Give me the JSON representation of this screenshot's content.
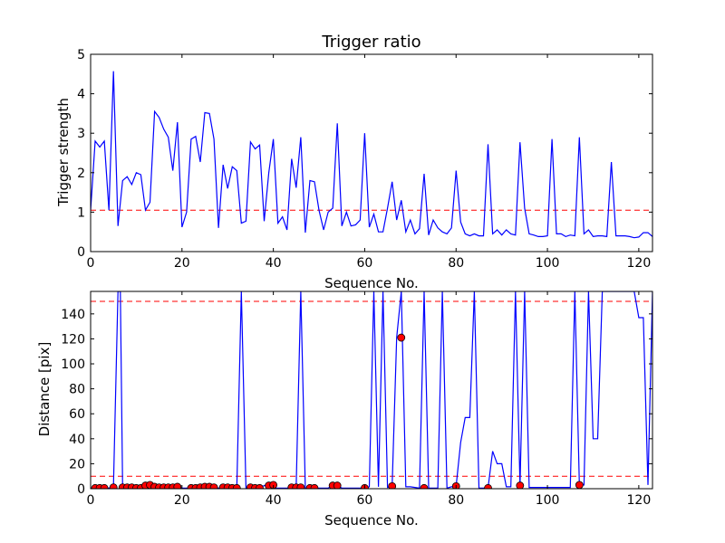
{
  "chart_data": [
    {
      "type": "line",
      "title": "Trigger ratio",
      "xlabel": "Sequence No.",
      "ylabel": "Trigger strength",
      "xlim": [
        0,
        123
      ],
      "ylim": [
        0,
        5
      ],
      "xticks": [
        0,
        20,
        40,
        60,
        80,
        100,
        120
      ],
      "yticks": [
        0,
        1,
        2,
        3,
        4,
        5
      ],
      "grid": false,
      "series": [
        {
          "color": "#0000ff",
          "values": [
            1.05,
            2.8,
            2.65,
            2.8,
            1.05,
            4.57,
            0.65,
            1.8,
            1.9,
            1.7,
            2.0,
            1.95,
            1.05,
            1.25,
            3.55,
            3.4,
            3.1,
            2.9,
            2.05,
            3.28,
            0.62,
            1.0,
            2.85,
            2.92,
            2.27,
            3.52,
            3.5,
            2.85,
            0.6,
            2.2,
            1.6,
            2.15,
            2.05,
            0.72,
            0.77,
            2.78,
            2.6,
            2.7,
            0.77,
            2.0,
            2.85,
            0.72,
            0.88,
            0.55,
            2.35,
            1.62,
            2.9,
            0.48,
            1.8,
            1.77,
            1.05,
            0.55,
            1.0,
            1.1,
            3.25,
            0.65,
            1.0,
            0.65,
            0.68,
            0.8,
            3.0,
            0.62,
            0.95,
            0.5,
            0.5,
            1.1,
            1.77,
            0.8,
            1.3,
            0.5,
            0.8,
            0.45,
            0.58,
            1.97,
            0.42,
            0.8,
            0.6,
            0.5,
            0.45,
            0.6,
            2.05,
            0.75,
            0.45,
            0.4,
            0.45,
            0.4,
            0.4,
            2.72,
            0.45,
            0.55,
            0.42,
            0.55,
            0.45,
            0.42,
            2.77,
            1.1,
            0.45,
            0.42,
            0.38,
            0.38,
            0.4,
            2.85,
            0.45,
            0.45,
            0.38,
            0.42,
            0.4,
            2.9,
            0.45,
            0.55,
            0.38,
            0.4,
            0.4,
            0.38,
            2.27,
            0.4,
            0.4,
            0.4,
            0.38,
            0.35,
            0.37,
            0.48,
            0.48,
            0.38
          ]
        }
      ],
      "threshold": {
        "value": 1.05,
        "color": "#ff0000",
        "style": "dashed"
      }
    },
    {
      "type": "line",
      "title": "",
      "xlabel": "Sequence No.",
      "ylabel": "Distance [pix]",
      "xlim": [
        0,
        123
      ],
      "ylim": [
        0,
        158
      ],
      "xticks": [
        0,
        20,
        40,
        60,
        80,
        100,
        120
      ],
      "yticks": [
        0,
        20,
        40,
        60,
        80,
        100,
        120,
        140
      ],
      "grid": false,
      "series": [
        {
          "color": "#0000ff",
          "x": [
            0,
            1,
            2,
            3,
            4,
            5,
            6,
            6.5,
            7,
            8,
            9,
            10,
            11,
            12,
            13,
            14,
            15,
            16,
            17,
            18,
            19,
            20,
            21,
            22,
            23,
            24,
            25,
            26,
            27,
            28,
            29,
            30,
            31,
            32,
            33,
            34,
            35,
            36,
            37,
            38,
            39,
            40,
            41,
            42,
            43,
            44,
            45,
            46,
            47,
            48,
            49,
            50,
            51,
            52,
            53,
            54,
            55,
            56,
            57,
            58,
            59,
            60,
            61,
            62,
            63,
            64,
            65,
            66,
            67,
            68,
            69,
            70,
            71,
            72,
            73,
            74,
            75,
            76,
            77,
            78,
            79,
            80,
            81,
            82,
            83,
            84,
            85,
            86,
            87,
            88,
            89,
            90,
            91,
            92,
            93,
            94,
            95,
            96,
            97,
            98,
            99,
            100,
            101,
            102,
            103,
            104,
            105,
            106,
            107,
            108,
            109,
            110,
            111,
            112,
            113,
            114,
            115,
            116,
            117,
            118,
            119,
            120,
            121,
            122,
            123
          ],
          "values": [
            0.5,
            0.5,
            0.5,
            0.5,
            0.5,
            2.0,
            158,
            158,
            1.0,
            1.0,
            1.0,
            0.5,
            0.5,
            2.5,
            3.0,
            1.5,
            1.0,
            1.0,
            1.0,
            1.0,
            1.5,
            0.5,
            0.5,
            0.5,
            0.5,
            1.0,
            1.5,
            1.5,
            1.0,
            0.5,
            1.0,
            1.0,
            0.5,
            0.5,
            158,
            0.5,
            1.0,
            0.5,
            0.5,
            2.5,
            3.0,
            0.5,
            0.5,
            0.5,
            0.5,
            1.0,
            1.0,
            158,
            0.5,
            0.5,
            0.5,
            0.5,
            0.5,
            0.5,
            2.5,
            2.5,
            0.5,
            0.5,
            0.5,
            0.5,
            0.5,
            0.5,
            1.5,
            158,
            1.5,
            158,
            1.0,
            2.0,
            121,
            158,
            1.5,
            1.5,
            1.0,
            0.5,
            158,
            0.5,
            0.5,
            0.5,
            158,
            0.5,
            1.5,
            2.0,
            37,
            57,
            57,
            158,
            0.5,
            0.5,
            0.5,
            30,
            20,
            20,
            1.5,
            1.5,
            158,
            2.5,
            158,
            1.0,
            1.0,
            1.0,
            1.0,
            1.0,
            1.0,
            1.0,
            1.0,
            1.0,
            1.0,
            158,
            3.0,
            3.0,
            158,
            40,
            40,
            158,
            158,
            158,
            158,
            158,
            158,
            158,
            158,
            137,
            137,
            3.0,
            158
          ],
          "markers_x": [
            1,
            2,
            3,
            5,
            7,
            8,
            9,
            10,
            11,
            12,
            13,
            14,
            15,
            16,
            17,
            18,
            19,
            22,
            23,
            24,
            25,
            26,
            27,
            29,
            30,
            31,
            32,
            35,
            36,
            37,
            39,
            40,
            44,
            45,
            46,
            48,
            49,
            53,
            54,
            60,
            66,
            68,
            73,
            80,
            87,
            94,
            107
          ],
          "markers_y": [
            0.5,
            0.5,
            0.5,
            1.0,
            1.0,
            1.0,
            1.0,
            0.5,
            0.5,
            2.5,
            3.0,
            1.5,
            1.0,
            1.0,
            1.0,
            1.0,
            1.5,
            0.5,
            0.5,
            1.0,
            1.5,
            1.5,
            1.0,
            1.0,
            1.0,
            0.5,
            0.5,
            1.0,
            0.5,
            0.5,
            2.5,
            3.0,
            1.0,
            1.0,
            1.0,
            0.5,
            0.5,
            2.5,
            2.5,
            0.5,
            2.0,
            121,
            0.5,
            2.0,
            0.5,
            2.5,
            3.0
          ]
        }
      ],
      "thresholds": [
        {
          "value": 10,
          "color": "#ff0000",
          "style": "dashed"
        },
        {
          "value": 150,
          "color": "#ff0000",
          "style": "dashed"
        }
      ]
    }
  ]
}
